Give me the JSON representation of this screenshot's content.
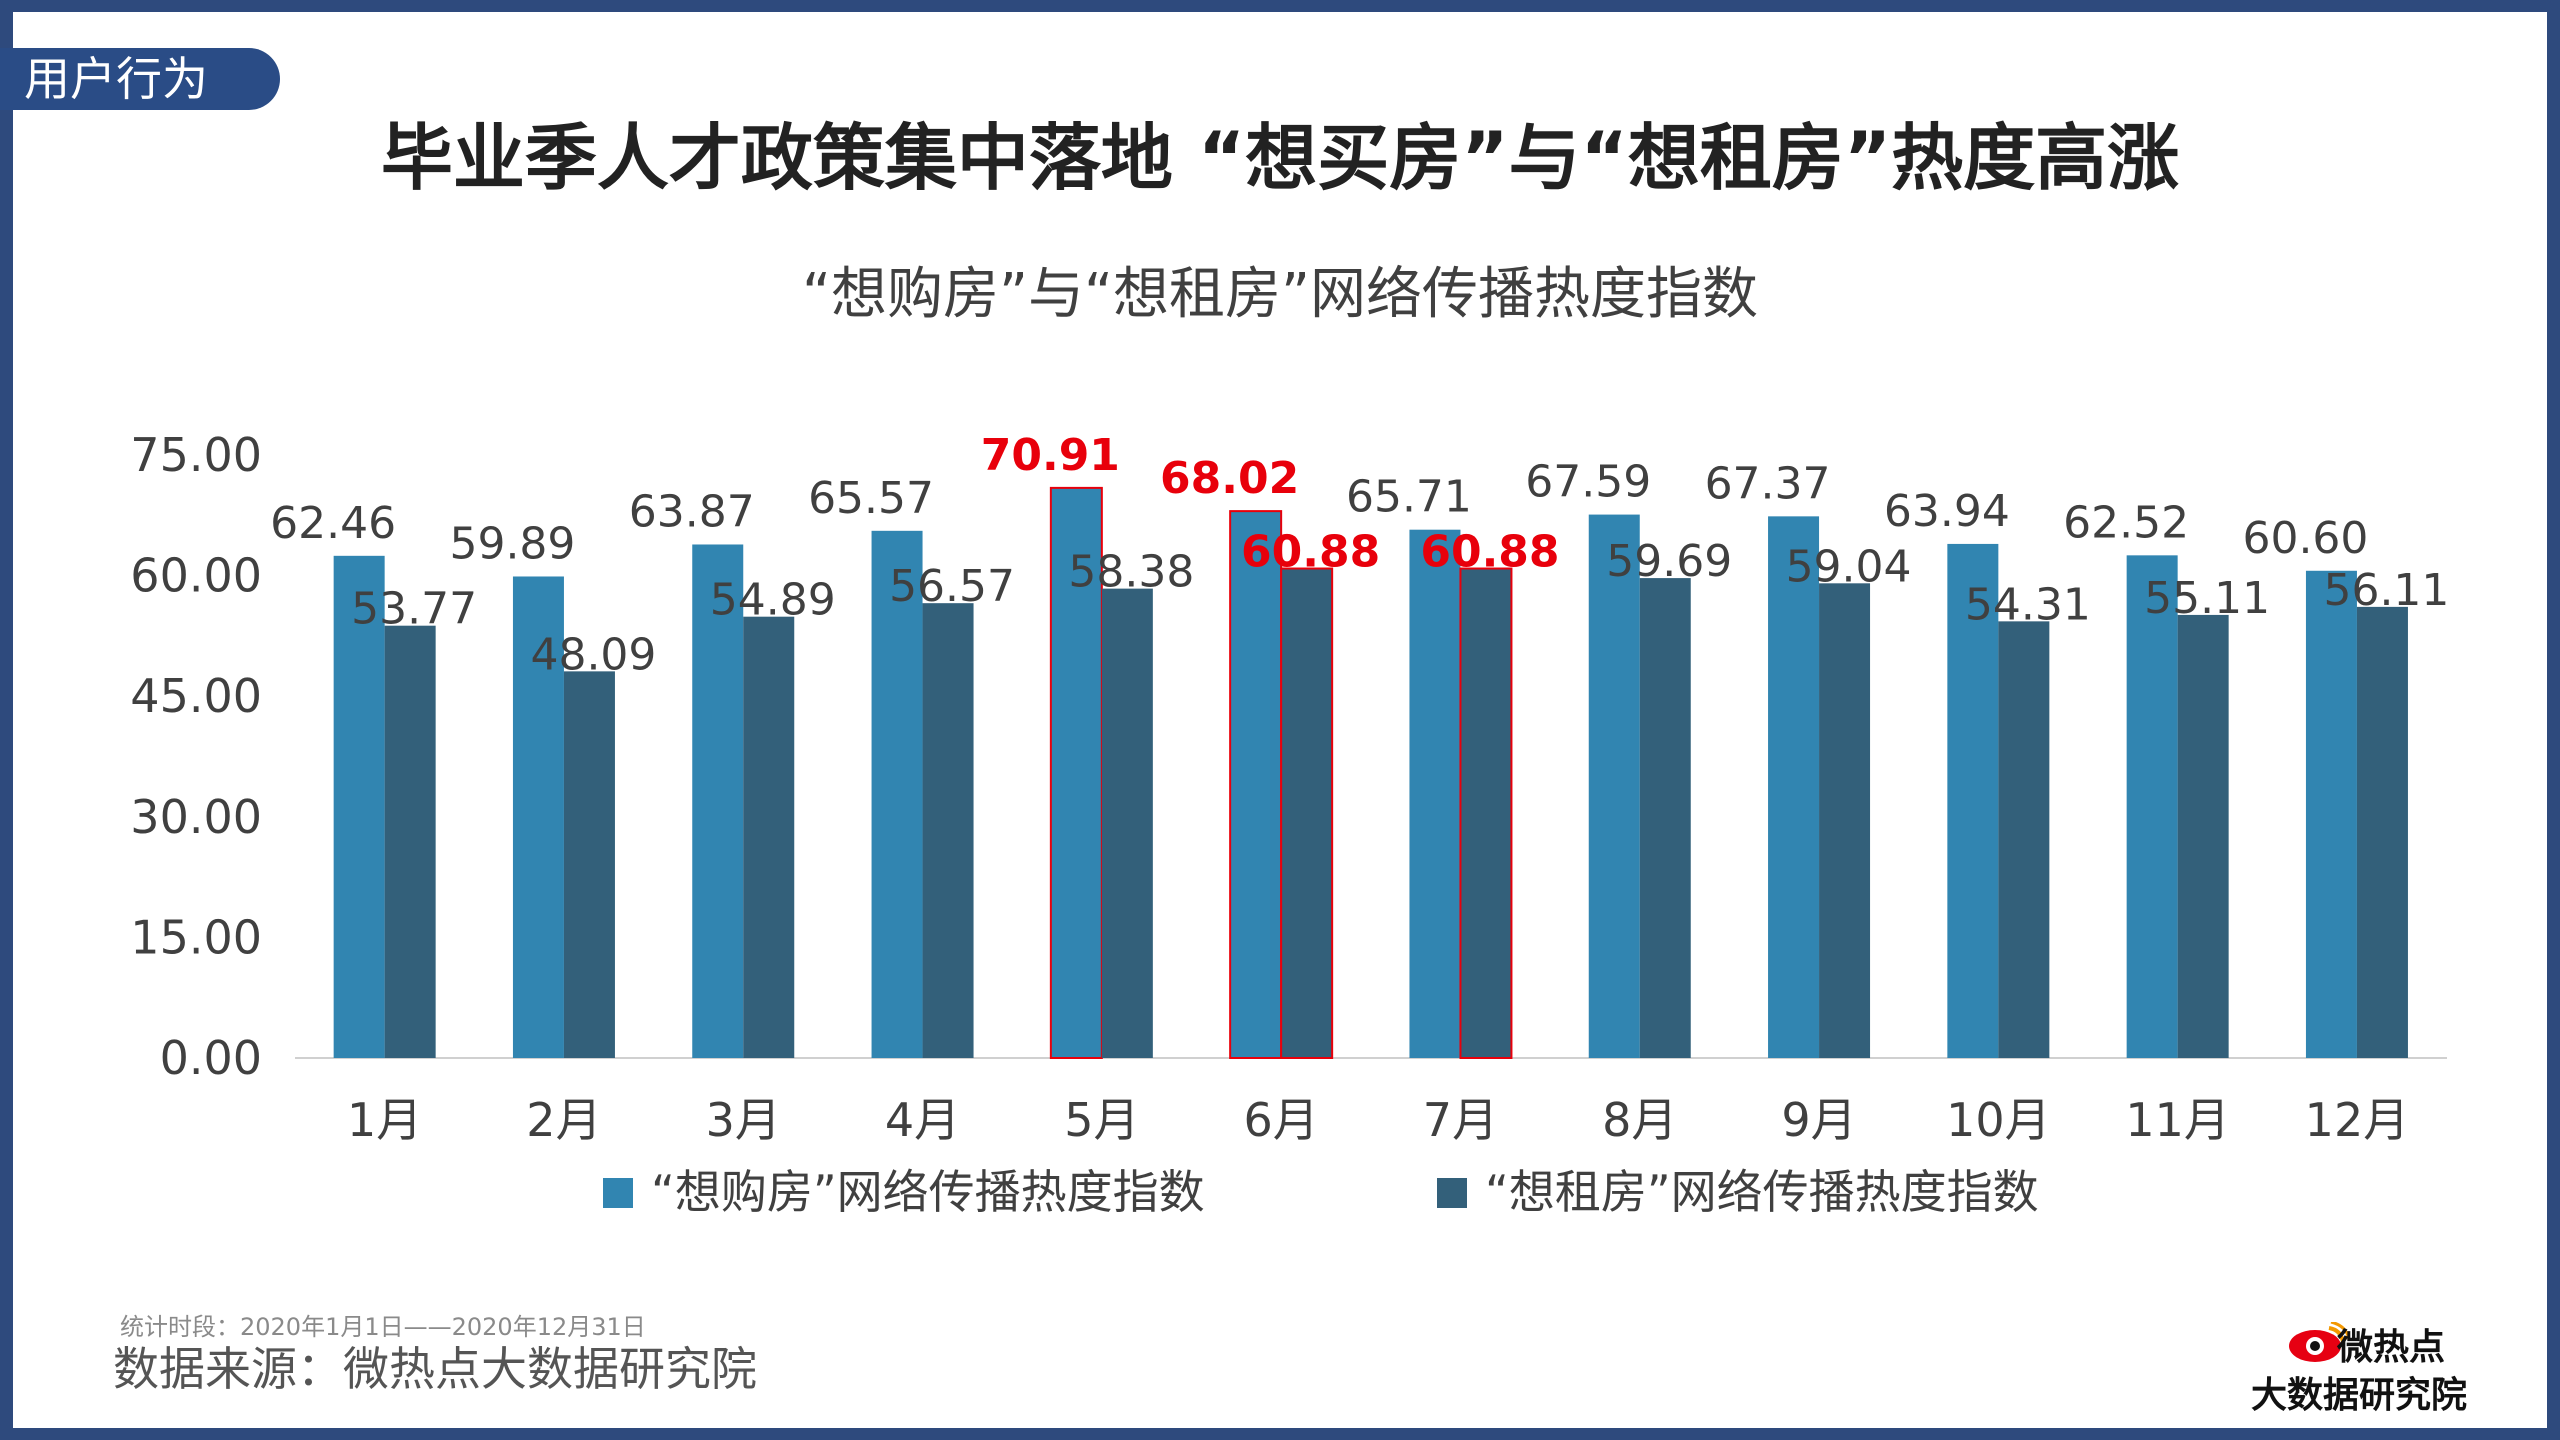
{
  "section_tag": "用户行为",
  "main_title": "毕业季人才政策集中落地 “想买房”与“想租房”热度高涨",
  "footer": {
    "period": "统计时段：2020年1月1日——2020年12月31日",
    "source": "数据来源：微热点大数据研究院"
  },
  "logo": {
    "line1": "微热点",
    "line2": "大数据研究院"
  },
  "colors": {
    "frame": "#2e4a7d",
    "tag_bg": "#2a4c86",
    "series_buy": "#3185b1",
    "series_rent": "#33607a",
    "highlight": "#e8000b"
  },
  "chart_data": {
    "type": "bar",
    "title": "“想购房”与“想租房”网络传播热度指数",
    "categories": [
      "1月",
      "2月",
      "3月",
      "4月",
      "5月",
      "6月",
      "7月",
      "8月",
      "9月",
      "10月",
      "11月",
      "12月"
    ],
    "series": [
      {
        "name": "“想购房”网络传播热度指数",
        "values": [
          62.46,
          59.89,
          63.87,
          65.57,
          70.91,
          68.02,
          65.71,
          67.59,
          67.37,
          63.94,
          62.52,
          60.6
        ],
        "labels": [
          "62.46",
          "59.89",
          "63.87",
          "65.57",
          "70.91",
          "68.02",
          "65.71",
          "67.59",
          "67.37",
          "63.94",
          "62.52",
          "60.60"
        ],
        "highlighted": [
          4,
          5
        ]
      },
      {
        "name": "“想租房”网络传播热度指数",
        "values": [
          53.77,
          48.09,
          54.89,
          56.57,
          58.38,
          60.88,
          60.88,
          59.69,
          59.04,
          54.31,
          55.11,
          56.11
        ],
        "labels": [
          "53.77",
          "48.09",
          "54.89",
          "56.57",
          "58.38",
          "60.88",
          "60.88",
          "59.69",
          "59.04",
          "54.31",
          "55.11",
          "56.11"
        ],
        "highlighted": [
          5,
          6
        ]
      }
    ],
    "y_ticks": [
      "0.00",
      "15.00",
      "30.00",
      "45.00",
      "60.00",
      "75.00"
    ],
    "ylim": [
      0,
      75
    ],
    "grid": false,
    "legend": "bottom"
  }
}
